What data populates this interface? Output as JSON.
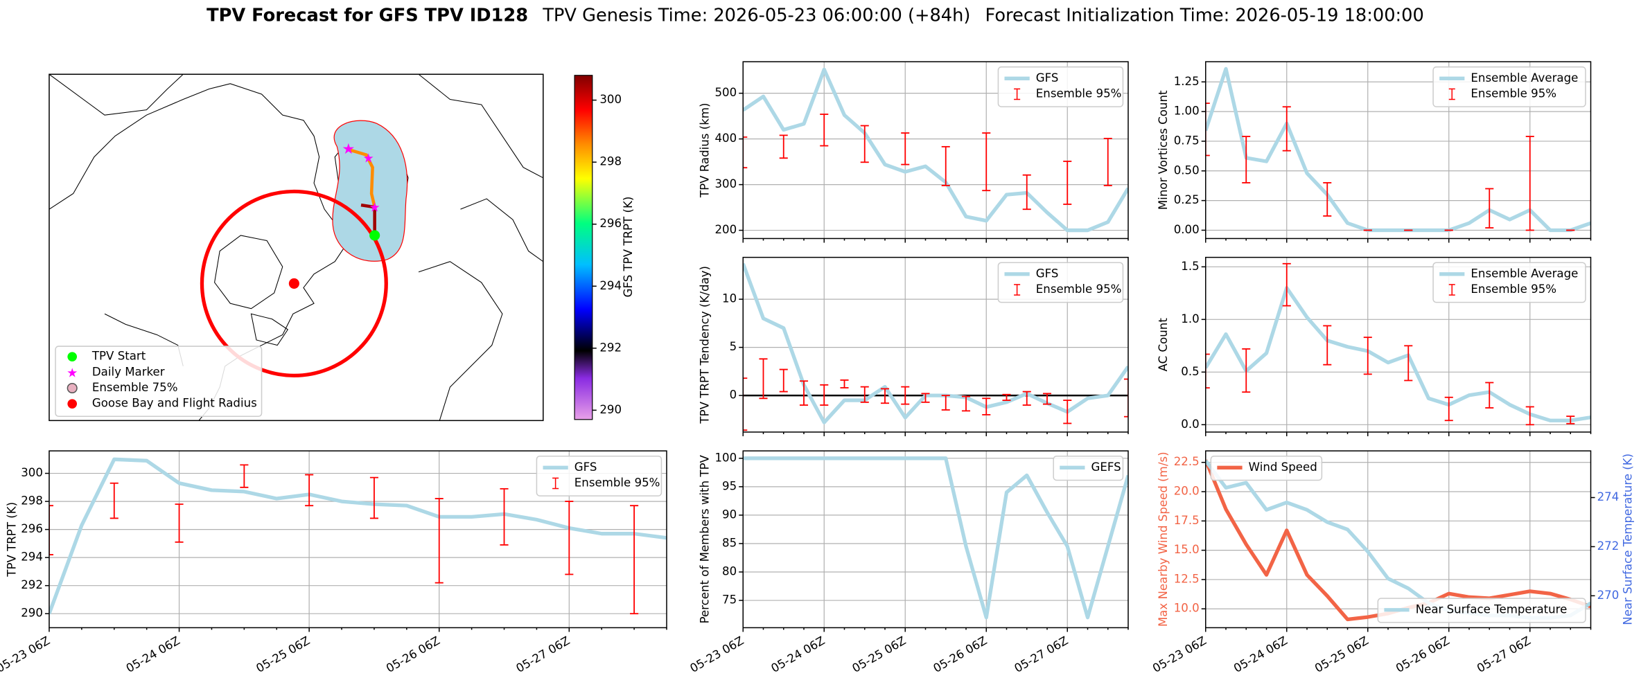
{
  "title": {
    "bold": "TPV Forecast for GFS TPV ID128",
    "genesis": "TPV Genesis Time: 2026-05-23 06:00:00 (+84h)",
    "init": "Forecast Initialization Time: 2026-05-19 18:00:00"
  },
  "chart_data": [
    {
      "type": "map",
      "legend": "lower left",
      "legend_items": [
        {
          "name": "TPV Start",
          "color": "#00ff00",
          "marker": "circle"
        },
        {
          "name": "Daily Marker",
          "color": "#ff00ff",
          "marker": "star"
        },
        {
          "name": "Ensemble 75%",
          "color": "#e8b0c0",
          "marker": "ring"
        },
        {
          "name": "Goose Bay and Flight Radius",
          "color": "#ff0000",
          "marker": "circle"
        }
      ],
      "colorbar": {
        "label": "GFS TPV TRPT (K)",
        "clim": [
          289.7,
          300.8
        ],
        "ticks": [
          290,
          292,
          294,
          296,
          298,
          300
        ]
      }
    },
    {
      "type": "line",
      "ylabel": "TPV TRPT (K)",
      "legend": "upper right",
      "grid": true,
      "categories": [
        "05-23 06Z",
        null,
        null,
        null,
        "05-24 06Z",
        null,
        null,
        null,
        "05-25 06Z",
        null,
        null,
        null,
        "05-26 06Z",
        null,
        null,
        null,
        "05-27 06Z",
        null,
        null,
        null
      ],
      "ylim": [
        289.0,
        301.6
      ],
      "yticks": [
        290,
        292,
        294,
        296,
        298,
        300
      ],
      "series": [
        {
          "name": "GFS",
          "color": "#add8e6",
          "values": [
            290.0,
            296.3,
            301.0,
            300.9,
            299.3,
            298.8,
            298.7,
            298.2,
            298.5,
            298.0,
            297.8,
            297.7,
            296.9,
            296.9,
            297.1,
            296.7,
            296.1,
            295.7,
            295.7,
            295.4
          ]
        },
        {
          "name": "Ensemble 95%",
          "color": "#ff0000",
          "lower": [
            294.2,
            null,
            296.8,
            null,
            295.1,
            null,
            299.0,
            null,
            297.7,
            null,
            296.8,
            null,
            292.2,
            null,
            294.9,
            null,
            292.8,
            null,
            290.0,
            null
          ],
          "upper": [
            297.7,
            null,
            299.3,
            null,
            297.8,
            null,
            300.6,
            null,
            299.9,
            null,
            299.7,
            null,
            298.2,
            null,
            298.9,
            null,
            298.0,
            null,
            297.7,
            null
          ]
        }
      ]
    },
    {
      "type": "line",
      "ylabel": "TPV Radius (km)",
      "legend": "upper right",
      "grid": true,
      "categories": [
        null,
        null,
        null,
        null,
        null,
        null,
        null,
        null,
        null,
        null,
        null,
        null,
        null,
        null,
        null,
        null,
        null,
        null,
        null,
        null
      ],
      "ylim": [
        182,
        569
      ],
      "yticks": [
        200,
        300,
        400,
        500
      ],
      "series": [
        {
          "name": "GFS",
          "color": "#add8e6",
          "values": [
            463,
            493,
            420,
            433,
            552,
            452,
            413,
            344,
            328,
            340,
            305,
            230,
            221,
            278,
            282,
            239,
            200,
            200,
            218,
            292
          ]
        },
        {
          "name": "Ensemble 95%",
          "color": "#ff0000",
          "lower": [
            337,
            null,
            358,
            null,
            385,
            null,
            349,
            null,
            344,
            null,
            298,
            null,
            287,
            null,
            246,
            null,
            257,
            null,
            298,
            null
          ],
          "upper": [
            404,
            null,
            408,
            null,
            454,
            null,
            429,
            null,
            413,
            null,
            383,
            null,
            413,
            null,
            321,
            null,
            351,
            null,
            401,
            null
          ]
        }
      ]
    },
    {
      "type": "line",
      "ylabel": "Minor Vortices Count",
      "legend": "upper right",
      "grid": true,
      "categories": [
        null,
        null,
        null,
        null,
        null,
        null,
        null,
        null,
        null,
        null,
        null,
        null,
        null,
        null,
        null,
        null,
        null,
        null,
        null,
        null
      ],
      "ylim": [
        -0.07,
        1.42
      ],
      "yticks": [
        {
          "value": 0,
          "label": "0.00"
        },
        {
          "value": 0.25,
          "label": "0.25"
        },
        {
          "value": 0.5,
          "label": "0.50"
        },
        {
          "value": 0.75,
          "label": "0.75"
        },
        {
          "value": 1,
          "label": "1.00"
        },
        {
          "value": 1.25,
          "label": "1.25"
        }
      ],
      "series": [
        {
          "name": "Ensemble Average",
          "color": "#add8e6",
          "values": [
            0.84,
            1.36,
            0.61,
            0.58,
            0.9,
            0.48,
            0.3,
            0.06,
            0,
            0,
            0,
            0,
            0,
            0.06,
            0.17,
            0.09,
            0.17,
            0,
            0,
            0.06
          ]
        },
        {
          "name": "Ensemble 95%",
          "color": "#ff0000",
          "lower": [
            0.63,
            null,
            0.4,
            null,
            0.67,
            null,
            0.12,
            null,
            0,
            null,
            0,
            null,
            0,
            null,
            0.02,
            null,
            0,
            null,
            0,
            null
          ],
          "upper": [
            1.07,
            null,
            0.79,
            null,
            1.04,
            null,
            0.4,
            null,
            0,
            null,
            0,
            null,
            0,
            null,
            0.35,
            null,
            0.79,
            null,
            0,
            null
          ]
        }
      ]
    },
    {
      "type": "line",
      "ylabel": "TPV TRPT Tendency (K/day)",
      "legend": "upper right",
      "grid": true,
      "hlines": [
        0
      ],
      "categories": [
        null,
        null,
        null,
        null,
        null,
        null,
        null,
        null,
        null,
        null,
        null,
        null,
        null,
        null,
        null,
        null,
        null,
        null,
        null,
        null
      ],
      "ylim": [
        -3.8,
        14.35
      ],
      "yticks": [
        0,
        5,
        10
      ],
      "series": [
        {
          "name": "GFS",
          "color": "#add8e6",
          "values": [
            13.7,
            8.0,
            7.0,
            1.1,
            -2.8,
            -0.5,
            -0.5,
            0.9,
            -2.3,
            0,
            0,
            -0.2,
            -1.2,
            -0.7,
            0.2,
            -0.8,
            -1.7,
            -0.3,
            0,
            3.0
          ]
        },
        {
          "name": "Ensemble 95%",
          "color": "#ff0000",
          "lower": [
            -3.6,
            -0.3,
            0.4,
            -1.0,
            -1.0,
            0.8,
            -0.7,
            -0.8,
            -0.9,
            -0.7,
            -1.5,
            -1.6,
            -2.0,
            -0.5,
            -1.0,
            -0.9,
            -2.9,
            null,
            null,
            -2.2
          ],
          "upper": [
            1.8,
            3.8,
            2.7,
            1.5,
            1.1,
            1.6,
            0.9,
            0.7,
            0.9,
            0.2,
            0,
            -0.1,
            -0.3,
            0.1,
            0.4,
            0.2,
            -0.5,
            null,
            null,
            1.7
          ]
        }
      ]
    },
    {
      "type": "line",
      "ylabel": "AC Count",
      "legend": "upper right",
      "grid": true,
      "categories": [
        null,
        null,
        null,
        null,
        null,
        null,
        null,
        null,
        null,
        null,
        null,
        null,
        null,
        null,
        null,
        null,
        null,
        null,
        null,
        null
      ],
      "ylim": [
        -0.07,
        1.59
      ],
      "yticks": [
        {
          "value": 0,
          "label": "0.0"
        },
        {
          "value": 0.5,
          "label": "0.5"
        },
        {
          "value": 1,
          "label": "1.0"
        },
        {
          "value": 1.5,
          "label": "1.5"
        }
      ],
      "series": [
        {
          "name": "Ensemble Average",
          "color": "#add8e6",
          "values": [
            0.54,
            0.86,
            0.51,
            0.68,
            1.3,
            1.02,
            0.8,
            0.74,
            0.7,
            0.59,
            0.66,
            0.25,
            0.19,
            0.28,
            0.31,
            0.19,
            0.1,
            0.04,
            0.04,
            0.07
          ]
        },
        {
          "name": "Ensemble 95%",
          "color": "#ff0000",
          "lower": [
            0.35,
            null,
            0.31,
            null,
            1.13,
            null,
            0.57,
            null,
            0.48,
            null,
            0.42,
            null,
            0.04,
            null,
            0.16,
            null,
            0,
            null,
            0.01,
            null
          ],
          "upper": [
            0.67,
            null,
            0.72,
            null,
            1.53,
            null,
            0.94,
            null,
            0.83,
            null,
            0.75,
            null,
            0.26,
            null,
            0.4,
            null,
            0.17,
            null,
            0.08,
            null
          ]
        }
      ]
    },
    {
      "type": "line",
      "ylabel": "Percent of Members with TPV",
      "legend": "upper right",
      "grid": true,
      "categories": [
        "05-23 06Z",
        null,
        null,
        null,
        "05-24 06Z",
        null,
        null,
        null,
        "05-25 06Z",
        null,
        null,
        null,
        "05-26 06Z",
        null,
        null,
        null,
        "05-27 06Z",
        null,
        null,
        null
      ],
      "ylim": [
        70.2,
        101.3
      ],
      "yticks": [
        75,
        80,
        85,
        90,
        95,
        100
      ],
      "series": [
        {
          "name": "GEFS",
          "color": "#add8e6",
          "values": [
            100,
            100,
            100,
            100,
            100,
            100,
            100,
            100,
            100,
            100,
            100,
            84.5,
            72,
            94,
            97,
            90.5,
            84.5,
            72,
            84.5,
            97
          ]
        }
      ]
    },
    {
      "type": "line",
      "ylabel": "Max Nearby Wind Speed (m/s)",
      "ylabel_color": "#f26446",
      "y2label": "Near Surface Temperature (K)",
      "y2label_color": "#4169e1",
      "legend": "upper left",
      "grid": true,
      "categories": [
        "05-23 06Z",
        null,
        null,
        null,
        "05-24 06Z",
        null,
        null,
        null,
        "05-25 06Z",
        null,
        null,
        null,
        "05-26 06Z",
        null,
        null,
        null,
        "05-27 06Z",
        null,
        null,
        null
      ],
      "ylim": [
        8.39,
        23.48
      ],
      "yticks": [
        {
          "value": 10,
          "label": "10.0"
        },
        {
          "value": 12.5,
          "label": "12.5"
        },
        {
          "value": 15,
          "label": "15.0"
        },
        {
          "value": 17.5,
          "label": "17.5"
        },
        {
          "value": 20,
          "label": "20.0"
        },
        {
          "value": 22.5,
          "label": "22.5"
        }
      ],
      "y2lim": [
        268.7,
        275.9
      ],
      "y2ticks": [
        270,
        272,
        274
      ],
      "series": [
        {
          "name": "Wind Speed",
          "color": "#f26446",
          "values": [
            22.7,
            18.5,
            15.5,
            12.9,
            16.7,
            12.9,
            11.1,
            9.1,
            9.3,
            9.6,
            10.1,
            10.5,
            11.3,
            11.0,
            10.9,
            11.2,
            11.5,
            11.3,
            10.8,
            10.2
          ]
        },
        {
          "name": "Near Surface Temperature",
          "color": "#add8e6",
          "axis": "y2",
          "legend": "lower right",
          "values": [
            275.5,
            274.4,
            274.6,
            273.5,
            273.8,
            273.5,
            273.0,
            272.7,
            271.8,
            270.7,
            270.3,
            269.7,
            269.4,
            269.3,
            269.2,
            269.2,
            269.1,
            269.1,
            269.2,
            269.7
          ]
        }
      ]
    }
  ]
}
